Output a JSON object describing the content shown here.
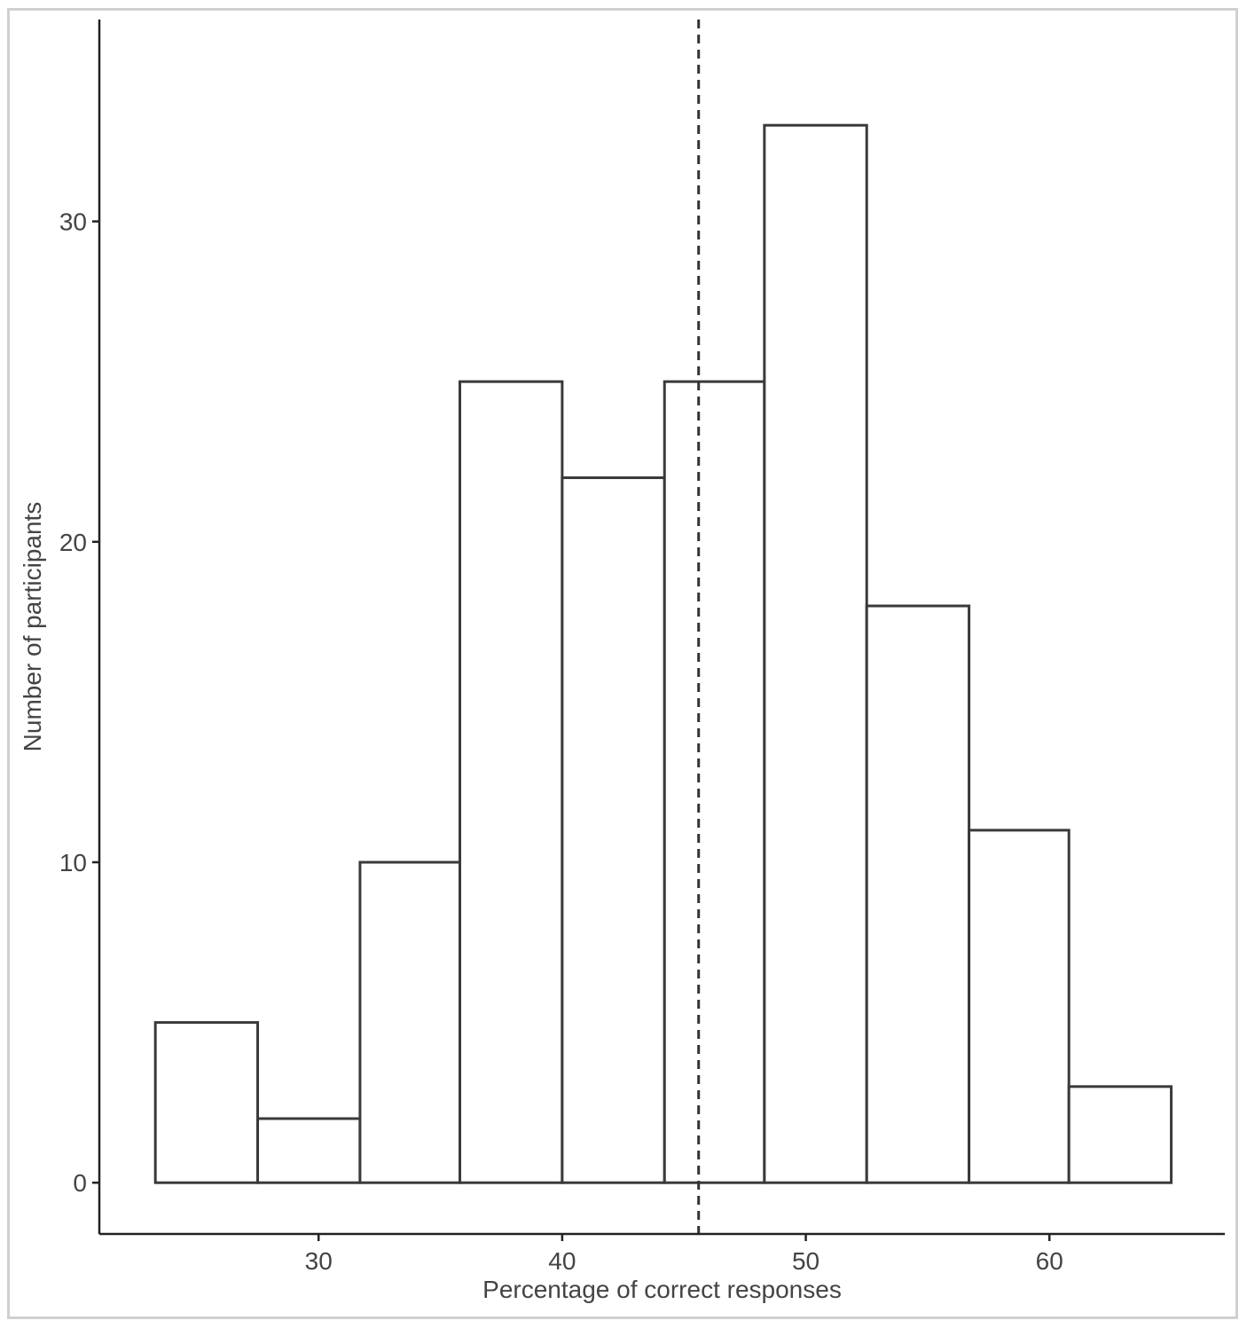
{
  "chart_data": {
    "type": "bar",
    "subtype": "histogram",
    "xlabel": "Percentage of correct responses",
    "ylabel": "Number of participants",
    "bins": [
      {
        "x0": 23.3,
        "x1": 27.5,
        "count": 5
      },
      {
        "x0": 27.5,
        "x1": 31.7,
        "count": 2
      },
      {
        "x0": 31.7,
        "x1": 35.8,
        "count": 10
      },
      {
        "x0": 35.8,
        "x1": 40.0,
        "count": 25
      },
      {
        "x0": 40.0,
        "x1": 44.2,
        "count": 22
      },
      {
        "x0": 44.2,
        "x1": 48.3,
        "count": 25
      },
      {
        "x0": 48.3,
        "x1": 52.5,
        "count": 33
      },
      {
        "x0": 52.5,
        "x1": 56.7,
        "count": 18
      },
      {
        "x0": 56.7,
        "x1": 60.8,
        "count": 11
      },
      {
        "x0": 60.8,
        "x1": 65.0,
        "count": 3
      }
    ],
    "reference_line": {
      "x": 45.6,
      "style": "dashed"
    },
    "xticks": [
      30,
      40,
      50,
      60
    ],
    "yticks": [
      0,
      10,
      20,
      30
    ],
    "xtick_labels": [
      "30",
      "40",
      "50",
      "60"
    ],
    "ytick_labels": [
      "0",
      "10",
      "20",
      "30"
    ],
    "xlim": [
      21.0,
      67.2
    ],
    "ylim": [
      -1.6,
      36.3
    ],
    "grid": false,
    "bar_fill": "#ffffff",
    "bar_stroke": "#3a3a3a",
    "axis_color": "#222222",
    "text_color": "#444444"
  }
}
